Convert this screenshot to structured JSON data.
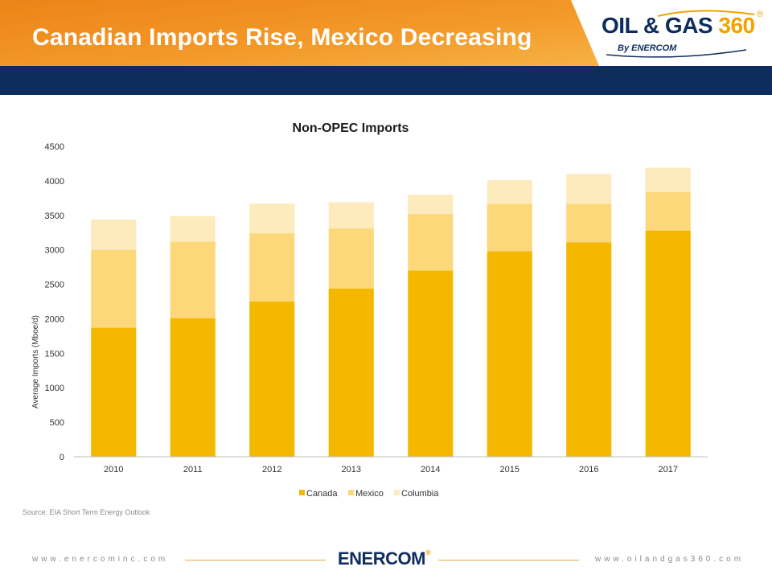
{
  "slide": {
    "title": "Canadian Imports Rise, Mexico Decreasing",
    "source": "Source: EIA Short Term Energy Outlook"
  },
  "logo": {
    "text_main": "OIL & GAS",
    "text_num": "360",
    "reg": "®",
    "sub": "By ENERCOM"
  },
  "footer": {
    "left_url": "www.enercominc.com",
    "right_url": "www.oilandgas360.com",
    "logo": "ENERCOM",
    "logo_reg": "®"
  },
  "colors": {
    "canada": "#f5b800",
    "mexico": "#fcd87a",
    "columbia": "#fdebbd",
    "navy": "#0d2d5e",
    "orange_dark": "#ee8a1c",
    "orange_light": "#f7b245"
  },
  "chart_data": {
    "type": "bar",
    "stacked": true,
    "title": "Non-OPEC Imports",
    "ylabel": "Average Imports (Mboe/d)",
    "xlabel": "",
    "ylim": [
      0,
      4500
    ],
    "yticks": [
      0,
      500,
      1000,
      1500,
      2000,
      2500,
      3000,
      3500,
      4000,
      4500
    ],
    "categories": [
      "2010",
      "2011",
      "2012",
      "2013",
      "2014",
      "2015",
      "2016",
      "2017"
    ],
    "series": [
      {
        "name": "Canada",
        "values": [
          1870,
          2010,
          2250,
          2440,
          2700,
          2980,
          3110,
          3280
        ]
      },
      {
        "name": "Mexico",
        "values": [
          1130,
          1110,
          990,
          870,
          820,
          690,
          560,
          560
        ]
      },
      {
        "name": "Columbia",
        "values": [
          440,
          370,
          430,
          380,
          280,
          340,
          430,
          350
        ]
      }
    ],
    "legend_position": "bottom",
    "grid": false
  }
}
